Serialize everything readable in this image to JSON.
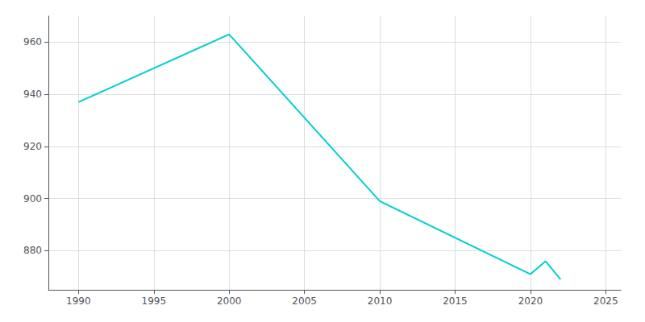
{
  "chart_data": {
    "type": "line",
    "x": [
      1990,
      2000,
      2010,
      2020,
      2021,
      2022
    ],
    "values": [
      937,
      963,
      899,
      871,
      876,
      869
    ],
    "color": "#00CED1",
    "xlim": [
      1988,
      2026
    ],
    "ylim": [
      865,
      970
    ],
    "xticks": [
      1990,
      1995,
      2000,
      2005,
      2010,
      2015,
      2020,
      2025
    ],
    "yticks": [
      880,
      900,
      920,
      940,
      960
    ],
    "grid": true
  }
}
